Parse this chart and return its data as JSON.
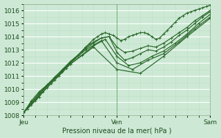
{
  "title": "",
  "xlabel": "Pression niveau de la mer( hPa )",
  "ylabel": "",
  "bg_color": "#cde9d5",
  "plot_bg": "#cde9d5",
  "grid_color": "#ffffff",
  "line_color": "#2d6a2d",
  "minor_grid_color": "#dff0e6",
  "xlim": [
    0,
    48
  ],
  "ylim": [
    1008,
    1016.5
  ],
  "yticks": [
    1008,
    1009,
    1010,
    1011,
    1012,
    1013,
    1014,
    1015,
    1016
  ],
  "xtick_labels": [
    "Jeu",
    "Ven",
    "Sam"
  ],
  "xtick_positions": [
    0,
    24,
    48
  ],
  "series": [
    {
      "x": [
        0,
        1,
        2,
        3,
        4,
        5,
        6,
        7,
        8,
        9,
        10,
        11,
        12,
        13,
        14,
        15,
        16,
        17,
        18,
        19,
        20,
        21,
        22,
        23,
        24,
        25,
        26,
        27,
        28,
        29,
        30,
        31,
        32,
        33,
        34,
        35,
        36,
        37,
        38,
        39,
        40,
        41,
        42,
        43,
        44,
        45,
        46,
        47,
        48
      ],
      "y": [
        1008.2,
        1008.5,
        1008.8,
        1009.1,
        1009.4,
        1009.8,
        1010.1,
        1010.4,
        1010.7,
        1011.0,
        1011.3,
        1011.6,
        1012.0,
        1012.3,
        1012.6,
        1012.9,
        1013.2,
        1013.5,
        1013.8,
        1014.0,
        1014.2,
        1014.3,
        1014.2,
        1014.1,
        1013.9,
        1013.7,
        1013.8,
        1014.0,
        1014.1,
        1014.2,
        1014.3,
        1014.3,
        1014.2,
        1014.0,
        1013.8,
        1013.9,
        1014.2,
        1014.5,
        1014.8,
        1015.1,
        1015.4,
        1015.6,
        1015.8,
        1015.9,
        1016.0,
        1016.1,
        1016.2,
        1016.3,
        1016.4
      ]
    },
    {
      "x": [
        0,
        2,
        4,
        6,
        8,
        10,
        12,
        14,
        16,
        18,
        20,
        22,
        24,
        26,
        28,
        30,
        32,
        34,
        36,
        38,
        40,
        42,
        44,
        46,
        48
      ],
      "y": [
        1008.2,
        1009.0,
        1009.6,
        1010.2,
        1010.8,
        1011.4,
        1012.0,
        1012.6,
        1013.2,
        1013.6,
        1013.9,
        1014.0,
        1013.2,
        1012.8,
        1012.9,
        1013.1,
        1013.3,
        1013.2,
        1013.5,
        1013.9,
        1014.3,
        1014.7,
        1015.2,
        1015.6,
        1016.0
      ]
    },
    {
      "x": [
        0,
        2,
        4,
        6,
        8,
        10,
        12,
        14,
        16,
        18,
        20,
        22,
        24,
        26,
        28,
        30,
        32,
        34,
        36,
        38,
        40,
        42,
        44,
        46,
        48
      ],
      "y": [
        1008.2,
        1009.1,
        1009.8,
        1010.3,
        1010.9,
        1011.5,
        1012.1,
        1012.6,
        1013.1,
        1013.5,
        1013.9,
        1014.0,
        1012.8,
        1012.2,
        1012.4,
        1012.7,
        1013.0,
        1012.9,
        1013.2,
        1013.6,
        1014.1,
        1014.5,
        1015.0,
        1015.5,
        1015.9
      ]
    },
    {
      "x": [
        0,
        3,
        6,
        9,
        12,
        15,
        18,
        21,
        24,
        27,
        30,
        33,
        36,
        39,
        42,
        45,
        48
      ],
      "y": [
        1008.2,
        1009.2,
        1010.3,
        1011.0,
        1011.9,
        1012.6,
        1013.3,
        1013.8,
        1012.5,
        1011.8,
        1012.0,
        1012.5,
        1012.9,
        1013.5,
        1014.2,
        1015.0,
        1015.7
      ]
    },
    {
      "x": [
        0,
        4,
        8,
        12,
        16,
        20,
        24,
        28,
        32,
        36,
        40,
        44,
        48
      ],
      "y": [
        1008.2,
        1009.7,
        1010.9,
        1012.0,
        1013.0,
        1013.7,
        1012.0,
        1011.5,
        1012.2,
        1012.7,
        1013.6,
        1014.6,
        1015.5
      ]
    },
    {
      "x": [
        0,
        6,
        12,
        18,
        24,
        30,
        36,
        42,
        48
      ],
      "y": [
        1008.2,
        1010.1,
        1011.9,
        1013.2,
        1011.5,
        1011.2,
        1012.5,
        1014.0,
        1015.4
      ]
    }
  ],
  "marker": "+",
  "markersize": 3.5,
  "linewidth": 0.9
}
